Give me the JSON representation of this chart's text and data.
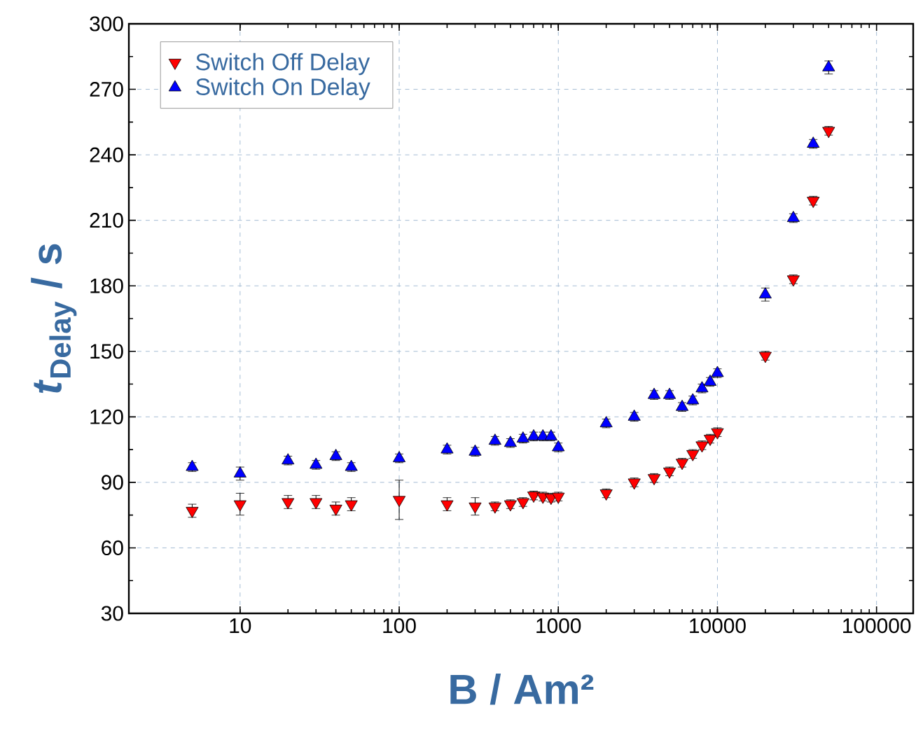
{
  "chart_data": {
    "type": "scatter",
    "xlabel": "B / Am²",
    "ylabel": "*t*$_{Delay}$ / s",
    "x": [
      5,
      10,
      20,
      30,
      40,
      50,
      100,
      200,
      300,
      400,
      500,
      600,
      700,
      800,
      900,
      1000,
      2000,
      3000,
      4000,
      5000,
      6000,
      7000,
      8000,
      9000,
      10000,
      20000,
      30000,
      40000,
      50000
    ],
    "series": [
      {
        "name": "Switch Off Delay",
        "color": "#ff0000",
        "marker": "triangle down",
        "values": [
          77,
          80,
          81,
          81,
          78,
          80,
          82,
          80,
          79,
          79,
          80,
          81,
          84,
          83.5,
          83,
          83.5,
          85,
          90,
          92,
          95,
          99,
          103,
          107,
          110,
          113,
          148,
          183,
          219,
          251
        ],
        "errors": [
          3,
          5,
          3,
          3,
          3,
          3,
          9,
          3,
          4,
          2,
          2,
          2,
          2,
          2,
          2,
          2,
          2,
          2,
          2,
          2,
          2,
          2,
          2,
          2,
          2,
          2,
          2,
          2,
          2
        ]
      },
      {
        "name": "Switch On Delay",
        "color": "#0000ff",
        "marker": "triangle",
        "values": [
          97,
          94,
          100,
          98,
          102,
          97,
          101,
          105,
          104,
          109,
          108,
          110,
          111,
          111,
          111,
          106,
          117,
          120,
          130,
          130,
          124.5,
          127.5,
          133,
          136,
          140,
          176,
          211,
          245,
          280
        ],
        "errors": [
          2,
          3,
          2,
          2,
          2,
          2,
          2,
          2,
          2,
          2,
          2,
          2,
          2,
          2,
          2,
          2,
          2,
          2,
          2,
          2,
          2,
          2,
          2,
          2,
          2,
          3,
          2,
          2,
          3
        ]
      }
    ],
    "log": "x",
    "xlim": [
      2,
      170000
    ],
    "xticks": [
      10,
      100,
      1000,
      10000,
      100000
    ],
    "ylim": [
      30,
      300
    ],
    "yticks": [
      30,
      60,
      90,
      120,
      150,
      180,
      210,
      240,
      270,
      300
    ],
    "grid": true,
    "legend": "top left"
  }
}
